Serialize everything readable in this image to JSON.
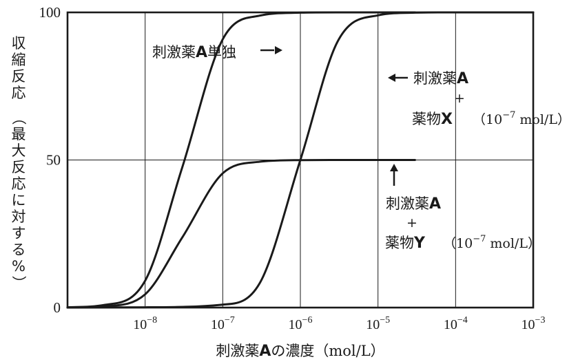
{
  "chart_data": {
    "type": "line",
    "xlabel_main": "刺激薬",
    "xlabel_bold": "A",
    "xlabel_tail": "の濃度",
    "xlabel_unit": "（mol/L）",
    "ylabel_main": [
      "収",
      "縮",
      "反",
      "応"
    ],
    "ylabel_paren": [
      "（",
      "最",
      "大",
      "反",
      "応",
      "に",
      "対",
      "す",
      "る",
      "%",
      "）"
    ],
    "x_scale": "log10",
    "xlim": [
      1e-09,
      0.001
    ],
    "ylim": [
      0,
      100
    ],
    "x_ticks": [
      {
        "value": 1e-08,
        "base": "10",
        "exp": "−8"
      },
      {
        "value": 1e-07,
        "base": "10",
        "exp": "−7"
      },
      {
        "value": 1e-06,
        "base": "10",
        "exp": "−6"
      },
      {
        "value": 1e-05,
        "base": "10",
        "exp": "−5"
      },
      {
        "value": 0.0001,
        "base": "10",
        "exp": "−4"
      },
      {
        "value": 0.001,
        "base": "10",
        "exp": "−3"
      }
    ],
    "y_ticks": [
      {
        "value": 0,
        "label": "0"
      },
      {
        "value": 50,
        "label": "50"
      },
      {
        "value": 100,
        "label": "100"
      }
    ],
    "grid": {
      "vertical": true,
      "horizontal": [
        50
      ]
    },
    "series": [
      {
        "name": "刺激薬A単独",
        "x": [
          1e-09,
          3e-09,
          1e-08,
          3e-08,
          1e-07,
          3e-07,
          1e-06,
          3e-06,
          1e-05,
          3e-05
        ],
        "y": [
          0.1,
          0.9,
          9.1,
          47.4,
          90.9,
          98.9,
          99.9,
          100,
          100,
          100
        ]
      },
      {
        "name": "刺激薬A + 薬物X（10⁻⁷ mol/L）",
        "x": [
          1e-09,
          1e-08,
          1e-07,
          3e-07,
          1e-06,
          3e-06,
          1e-05,
          3e-05,
          0.0001,
          0.0003,
          0.001
        ],
        "y": [
          0,
          0.1,
          1.0,
          8.3,
          50.0,
          90.0,
          99.0,
          99.9,
          100,
          100,
          100
        ]
      },
      {
        "name": "刺激薬A + 薬物Y（10⁻⁷ mol/L）",
        "x": [
          1e-09,
          3e-09,
          1e-08,
          3e-08,
          1e-07,
          3e-07,
          1e-06,
          3e-06,
          1e-05,
          3e-05
        ],
        "y": [
          0.05,
          0.45,
          4.5,
          23.7,
          45.5,
          49.4,
          49.95,
          50,
          50,
          50
        ]
      }
    ],
    "annotations": [
      {
        "id": "a",
        "lines": [
          [
            {
              "t": "刺激薬",
              "b": false
            },
            {
              "t": "A",
              "b": true
            },
            {
              "t": "単独",
              "b": false
            }
          ]
        ],
        "arrow": "right"
      },
      {
        "id": "x",
        "lines": [
          [
            {
              "t": "刺激薬",
              "b": false
            },
            {
              "t": "A",
              "b": true
            }
          ]
        ],
        "plus": "+",
        "line3": [
          {
            "t": "薬物",
            "b": false
          },
          {
            "t": "X",
            "b": true
          }
        ],
        "conc": "（10",
        "conc_exp": "−7",
        "conc_unit": " mol/L）",
        "arrow": "left"
      },
      {
        "id": "y",
        "lines": [
          [
            {
              "t": "刺激薬",
              "b": false
            },
            {
              "t": "A",
              "b": true
            }
          ]
        ],
        "plus": "+",
        "line3": [
          {
            "t": "薬物",
            "b": false
          },
          {
            "t": "Y",
            "b": true
          }
        ],
        "conc": "（10",
        "conc_exp": "−7",
        "conc_unit": " mol/L）",
        "arrow": "up"
      }
    ],
    "colors": {
      "line": "#1a1a1a",
      "grid": "#1a1a1a",
      "axis": "#1a1a1a"
    }
  }
}
